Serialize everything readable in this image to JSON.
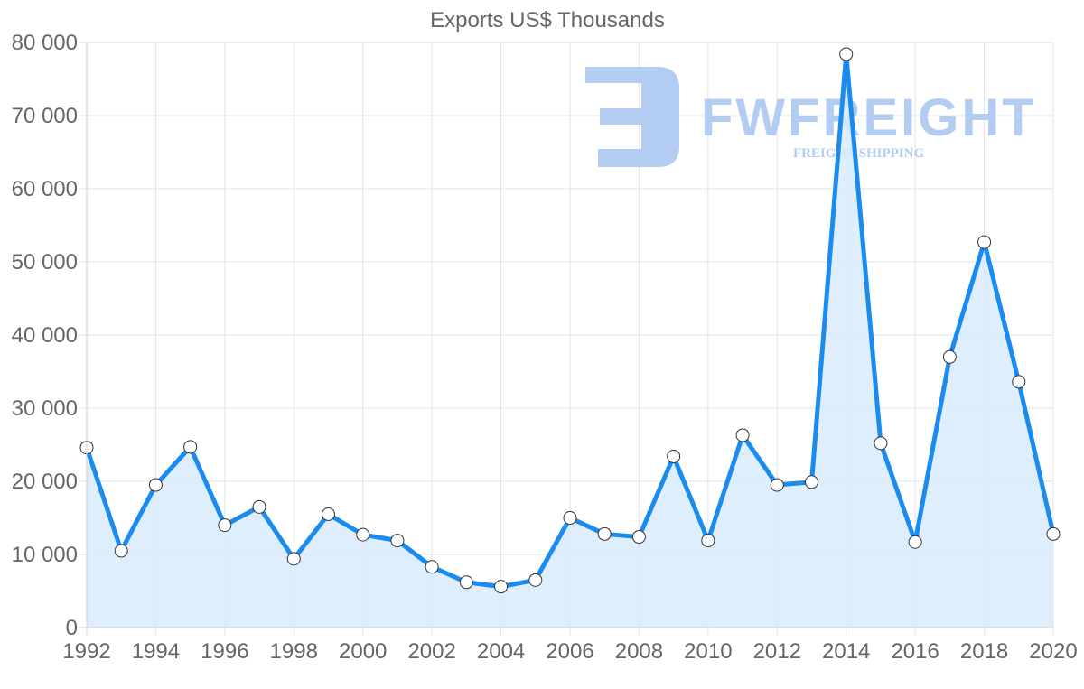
{
  "chart_data": {
    "type": "line",
    "title": "Exports US$ Thousands",
    "xlabel": "",
    "ylabel": "",
    "x": [
      1992,
      1993,
      1994,
      1995,
      1996,
      1997,
      1998,
      1999,
      2000,
      2001,
      2002,
      2003,
      2004,
      2005,
      2006,
      2007,
      2008,
      2009,
      2010,
      2011,
      2012,
      2013,
      2014,
      2015,
      2016,
      2017,
      2018,
      2019,
      2020
    ],
    "series": [
      {
        "name": "Exports US$ Thousands",
        "values": [
          24600,
          10500,
          19500,
          24700,
          14000,
          16500,
          9400,
          15500,
          12700,
          11900,
          8300,
          6200,
          5600,
          6500,
          15000,
          12800,
          12400,
          23400,
          11900,
          26300,
          19500,
          19900,
          78400,
          25200,
          11700,
          37000,
          52700,
          33600,
          12800
        ]
      }
    ],
    "ylim": [
      0,
      80000
    ],
    "yticks": [
      0,
      10000,
      20000,
      30000,
      40000,
      50000,
      60000,
      70000,
      80000
    ],
    "ytick_labels": [
      "0",
      "10 000",
      "20 000",
      "30 000",
      "40 000",
      "50 000",
      "60 000",
      "70 000",
      "80 000"
    ],
    "xtick_labels": [
      "1992",
      "1994",
      "1996",
      "1998",
      "2000",
      "2002",
      "2004",
      "2006",
      "2008",
      "2010",
      "2012",
      "2014",
      "2016",
      "2018",
      "2020"
    ],
    "grid": true,
    "legend": "none",
    "colors": {
      "line": "#1a8cf0",
      "fill": "#d9ebfc",
      "point_fill": "#ffffff",
      "point_stroke": "#333333"
    }
  },
  "watermark": {
    "brand": "FWFREIGHT",
    "tagline": "FREIGHT SHIPPING",
    "color": "#b3ccf2"
  }
}
